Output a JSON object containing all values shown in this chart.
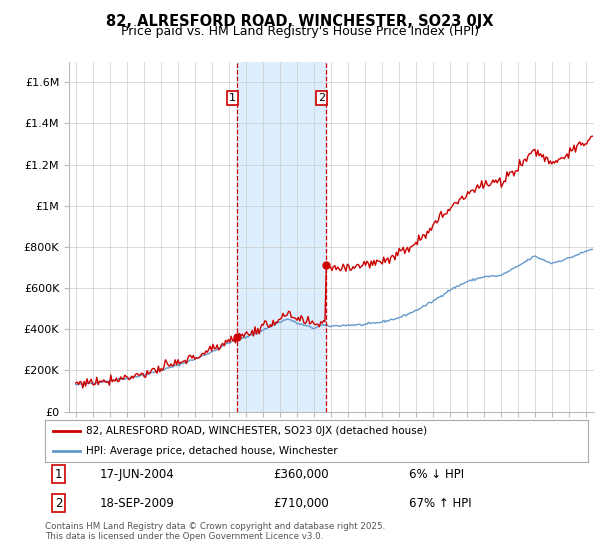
{
  "title": "82, ALRESFORD ROAD, WINCHESTER, SO23 0JX",
  "subtitle": "Price paid vs. HM Land Registry's House Price Index (HPI)",
  "ylim": [
    0,
    1700000
  ],
  "yticks": [
    0,
    200000,
    400000,
    600000,
    800000,
    1000000,
    1200000,
    1400000,
    1600000
  ],
  "ytick_labels": [
    "£0",
    "£200K",
    "£400K",
    "£600K",
    "£800K",
    "£1M",
    "£1.2M",
    "£1.4M",
    "£1.6M"
  ],
  "xlim_start": 1994.6,
  "xlim_end": 2025.5,
  "xticks": [
    1995,
    1996,
    1997,
    1998,
    1999,
    2000,
    2001,
    2002,
    2003,
    2004,
    2005,
    2006,
    2007,
    2008,
    2009,
    2010,
    2011,
    2012,
    2013,
    2014,
    2015,
    2016,
    2017,
    2018,
    2019,
    2020,
    2021,
    2022,
    2023,
    2024,
    2025
  ],
  "property_color": "#cc0000",
  "hpi_color": "#6699cc",
  "sale1_x": 2004.46,
  "sale1_y": 360000,
  "sale1_label": "1",
  "sale1_date": "17-JUN-2004",
  "sale1_price": "£360,000",
  "sale1_hpi": "6% ↓ HPI",
  "sale2_x": 2009.72,
  "sale2_y": 710000,
  "sale2_label": "2",
  "sale2_date": "18-SEP-2009",
  "sale2_price": "£710,000",
  "sale2_hpi": "67% ↑ HPI",
  "legend_property": "82, ALRESFORD ROAD, WINCHESTER, SO23 0JX (detached house)",
  "legend_hpi": "HPI: Average price, detached house, Winchester",
  "footer": "Contains HM Land Registry data © Crown copyright and database right 2025.\nThis data is licensed under the Open Government Licence v3.0.",
  "shaded_region_color": "#ddeeff",
  "background_color": "#ffffff",
  "title_fontsize": 10.5,
  "subtitle_fontsize": 9
}
